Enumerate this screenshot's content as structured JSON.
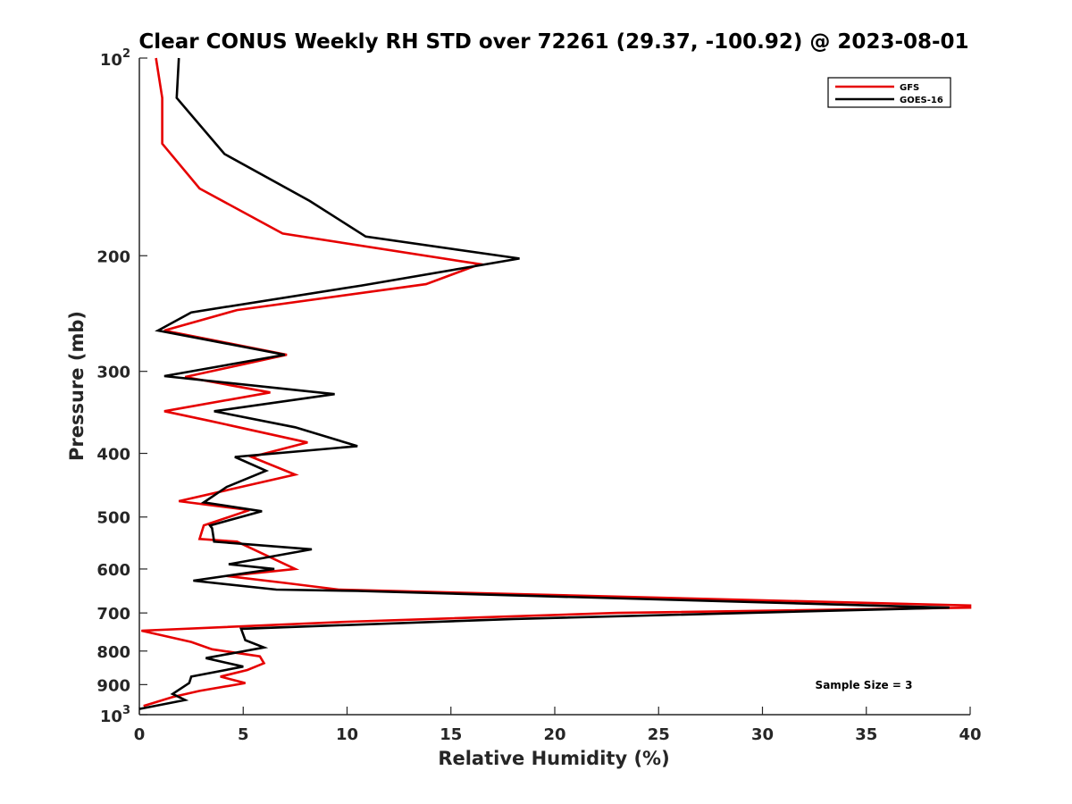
{
  "chart_data": {
    "type": "line",
    "title": "Clear CONUS Weekly RH STD over 72261 (29.37, -100.92) @ 2023-08-01",
    "xlabel": "Relative Humidity (%)",
    "ylabel": "Pressure (mb)",
    "xlim": [
      0,
      40
    ],
    "ylim": [
      100,
      1000
    ],
    "y_scale": "log",
    "y_reversed": true,
    "x_ticks": [
      "0",
      "5",
      "10",
      "15",
      "20",
      "25",
      "30",
      "35",
      "40"
    ],
    "y_ticks": [
      {
        "value": 100,
        "base": "10",
        "exp": "2"
      },
      {
        "value": 200,
        "label": "200"
      },
      {
        "value": 300,
        "label": "300"
      },
      {
        "value": 400,
        "label": "400"
      },
      {
        "value": 500,
        "label": "500"
      },
      {
        "value": 600,
        "label": "600"
      },
      {
        "value": 700,
        "label": "700"
      },
      {
        "value": 800,
        "label": "800"
      },
      {
        "value": 900,
        "label": "900"
      },
      {
        "value": 1000,
        "base": "10",
        "exp": "3"
      }
    ],
    "grid": false,
    "legend_position": "top-right",
    "annotation": "Sample Size = 3",
    "series": [
      {
        "name": "GFS",
        "color": "#e60000",
        "points": [
          [
            0.8,
            100
          ],
          [
            1.1,
            115
          ],
          [
            1.1,
            135
          ],
          [
            2.9,
            158
          ],
          [
            6.9,
            185
          ],
          [
            16.4,
            206
          ],
          [
            13.8,
            221
          ],
          [
            4.7,
            242
          ],
          [
            1.2,
            260
          ],
          [
            7.1,
            283
          ],
          [
            2.2,
            306
          ],
          [
            6.3,
            323
          ],
          [
            1.2,
            345
          ],
          [
            3.4,
            357
          ],
          [
            8.1,
            385
          ],
          [
            5.4,
            405
          ],
          [
            7.5,
            431
          ],
          [
            1.9,
            473
          ],
          [
            5.3,
            488
          ],
          [
            3.1,
            515
          ],
          [
            2.9,
            540
          ],
          [
            4.7,
            545
          ],
          [
            7.5,
            600
          ],
          [
            4.2,
            615
          ],
          [
            7.0,
            630
          ],
          [
            9.6,
            645
          ],
          [
            40.0,
            682
          ],
          [
            40.0,
            687
          ],
          [
            23.0,
            700
          ],
          [
            10.0,
            722
          ],
          [
            0.1,
            745
          ],
          [
            2.5,
            775
          ],
          [
            3.5,
            795
          ],
          [
            5.8,
            815
          ],
          [
            6.0,
            835
          ],
          [
            5.2,
            855
          ],
          [
            3.9,
            875
          ],
          [
            5.1,
            895
          ],
          [
            2.9,
            920
          ],
          [
            1.6,
            940
          ],
          [
            0.2,
            970
          ]
        ]
      },
      {
        "name": "GOES-16",
        "color": "#000000",
        "points": [
          [
            1.9,
            100
          ],
          [
            1.8,
            115
          ],
          [
            4.1,
            140
          ],
          [
            8.2,
            165
          ],
          [
            10.9,
            187
          ],
          [
            18.3,
            202
          ],
          [
            10.7,
            222
          ],
          [
            2.5,
            244
          ],
          [
            0.9,
            260
          ],
          [
            7.0,
            283
          ],
          [
            1.2,
            305
          ],
          [
            9.4,
            325
          ],
          [
            3.6,
            345
          ],
          [
            7.5,
            365
          ],
          [
            10.5,
            390
          ],
          [
            4.6,
            405
          ],
          [
            6.1,
            425
          ],
          [
            4.2,
            450
          ],
          [
            3.1,
            475
          ],
          [
            5.9,
            490
          ],
          [
            3.4,
            515
          ],
          [
            3.5,
            520
          ],
          [
            3.6,
            545
          ],
          [
            8.3,
            560
          ],
          [
            4.3,
            590
          ],
          [
            6.5,
            600
          ],
          [
            2.6,
            625
          ],
          [
            6.6,
            645
          ],
          [
            10.5,
            648
          ],
          [
            39.0,
            687
          ],
          [
            18.0,
            715
          ],
          [
            4.9,
            740
          ],
          [
            5.1,
            770
          ],
          [
            6.0,
            790
          ],
          [
            3.2,
            820
          ],
          [
            5.0,
            845
          ],
          [
            2.5,
            875
          ],
          [
            2.4,
            895
          ],
          [
            1.6,
            930
          ],
          [
            2.2,
            950
          ],
          [
            0.0,
            980
          ]
        ]
      }
    ]
  }
}
